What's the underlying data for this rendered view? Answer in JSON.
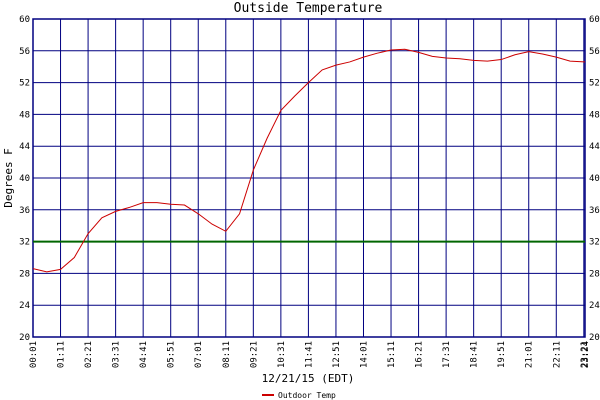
{
  "chart_data": {
    "type": "line",
    "title": "Outside Temperature",
    "y_label": "Degrees F",
    "x_label": "12/21/15 (EDT)",
    "x": [
      1,
      36,
      71,
      106,
      141,
      176,
      211,
      246,
      281,
      316,
      351,
      386,
      421,
      456,
      491,
      526,
      561,
      596,
      631,
      666,
      701,
      736,
      771,
      806,
      841,
      876,
      911,
      946,
      981,
      1016,
      1051,
      1086,
      1121,
      1156,
      1191,
      1226,
      1261,
      1296,
      1331,
      1366,
      1401,
      1404
    ],
    "series": [
      {
        "name": "Outdoor Temp",
        "color": "#cc0000",
        "values": [
          28.6,
          28.2,
          28.5,
          30,
          33,
          35,
          35.8,
          36.3,
          36.9,
          36.9,
          36.7,
          36.6,
          35.5,
          34.2,
          33.3,
          35.5,
          41,
          45,
          48.5,
          50.3,
          52,
          53.6,
          54.2,
          54.6,
          55.2,
          55.7,
          56.1,
          56.2,
          55.8,
          55.3,
          55.1,
          55,
          54.8,
          54.7,
          54.9,
          55.5,
          55.9,
          55.6,
          55.2,
          54.7,
          54.6,
          54.6
        ]
      }
    ],
    "reference_line": {
      "value": 32,
      "color": "#006600"
    },
    "xlim": [
      1,
      1404
    ],
    "xticks": [
      {
        "value": 1,
        "label": "00:01"
      },
      {
        "value": 71,
        "label": "01:11"
      },
      {
        "value": 141,
        "label": "02:21"
      },
      {
        "value": 211,
        "label": "03:31"
      },
      {
        "value": 281,
        "label": "04:41"
      },
      {
        "value": 351,
        "label": "05:51"
      },
      {
        "value": 421,
        "label": "07:01"
      },
      {
        "value": 491,
        "label": "08:11"
      },
      {
        "value": 561,
        "label": "09:21"
      },
      {
        "value": 631,
        "label": "10:31"
      },
      {
        "value": 701,
        "label": "11:41"
      },
      {
        "value": 771,
        "label": "12:51"
      },
      {
        "value": 841,
        "label": "14:01"
      },
      {
        "value": 911,
        "label": "15:11"
      },
      {
        "value": 981,
        "label": "16:21"
      },
      {
        "value": 1051,
        "label": "17:31"
      },
      {
        "value": 1121,
        "label": "18:41"
      },
      {
        "value": 1191,
        "label": "19:51"
      },
      {
        "value": 1261,
        "label": "21:01"
      },
      {
        "value": 1331,
        "label": "22:11"
      },
      {
        "value": 1401,
        "label": "23:21"
      },
      {
        "value": 1404,
        "label": "23:24"
      }
    ],
    "ylim": [
      20,
      60
    ],
    "yticks": [
      20,
      24,
      28,
      32,
      36,
      40,
      44,
      48,
      52,
      56,
      60
    ],
    "grid": true,
    "grid_color": "#000080",
    "legend": "bottom"
  }
}
